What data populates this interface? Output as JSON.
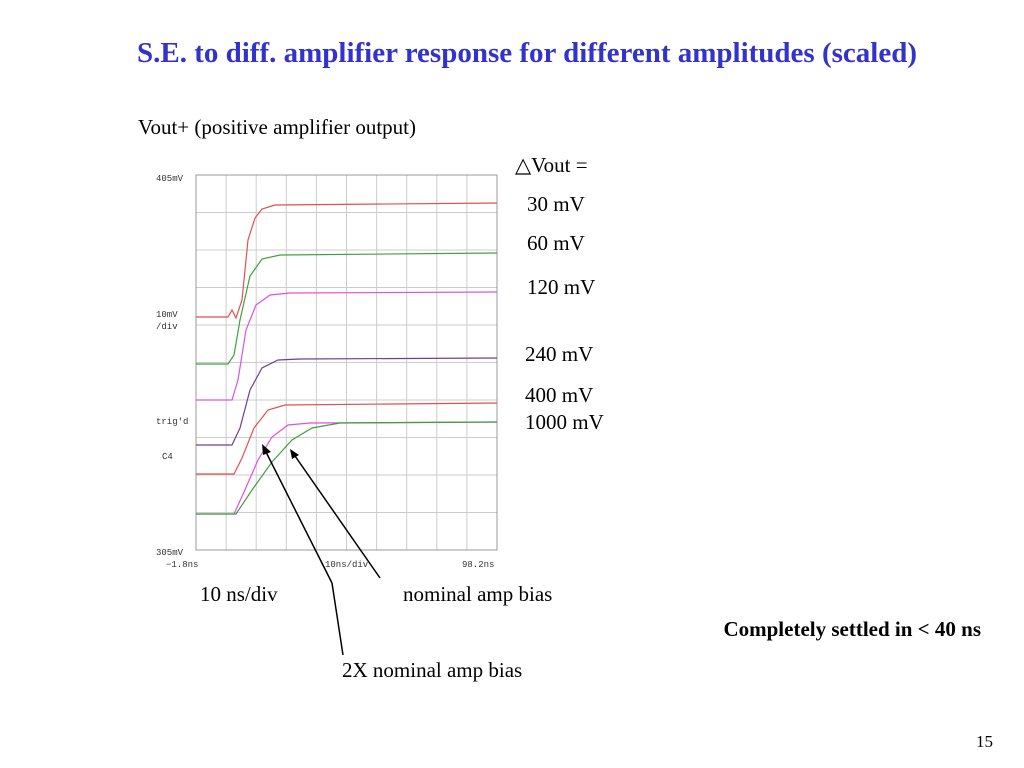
{
  "header": {
    "title": "S.E. to diff. amplifier response for different amplitudes (scaled)"
  },
  "subtitle": "Vout+ (positive amplifier output)",
  "scope": {
    "top_label": "405mV",
    "scale_label": "10mV",
    "scale_unit": "/div",
    "trig_label": "trig'd",
    "channel": "C4",
    "bottom_label": "305mV",
    "x_start": "−1.8ns",
    "x_scale": "10ns/div",
    "x_end": "98.2ns"
  },
  "legend": {
    "heading": "△Vout =",
    "items": [
      "30 mV",
      "60 mV",
      "120 mV",
      "240 mV",
      "400 mV",
      "1000 mV"
    ]
  },
  "annotations": {
    "time_scale": "10 ns/div",
    "nominal": "nominal amp bias",
    "double": "2X nominal amp bias",
    "settled": "Completely settled in < 40 ns"
  },
  "footer": {
    "page": "15"
  }
}
